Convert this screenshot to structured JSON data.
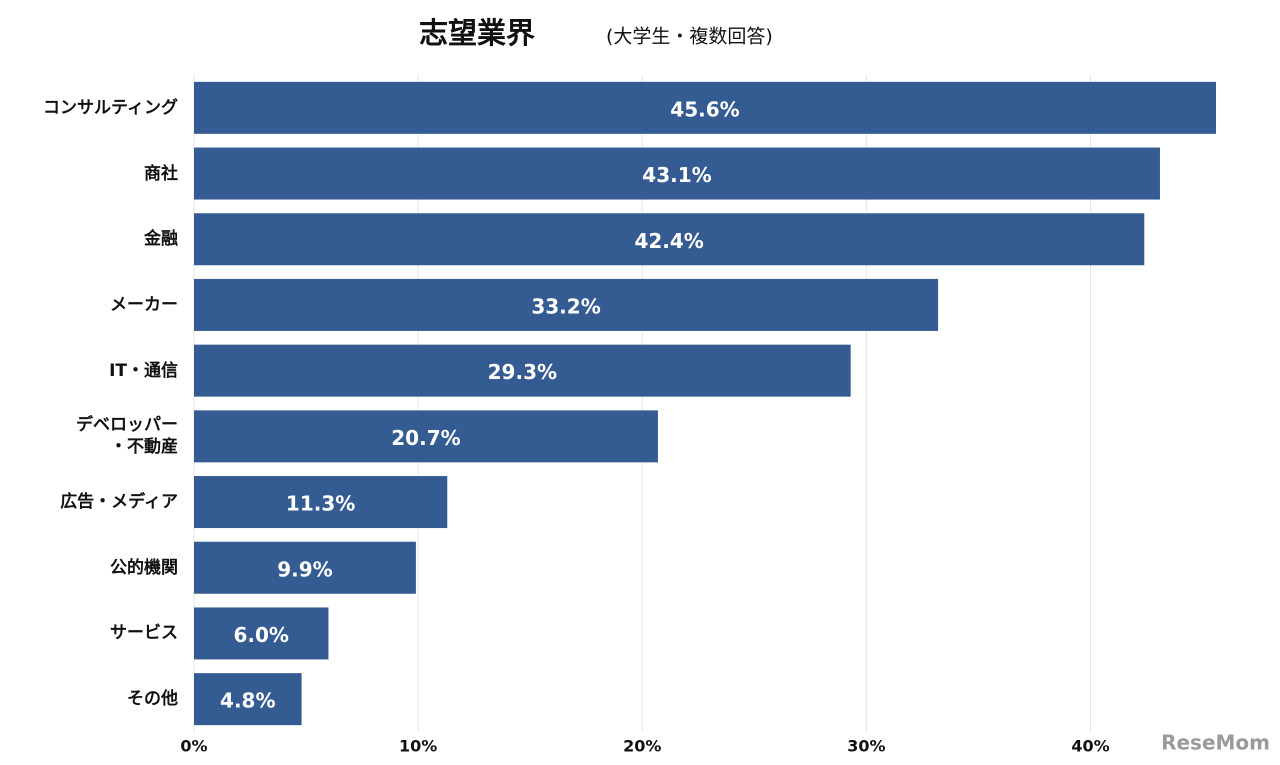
{
  "chart_data": {
    "type": "bar",
    "orientation": "horizontal",
    "title": "志望業界",
    "subtitle": "(大学生・複数回答)",
    "categories": [
      "コンサルティング",
      "商社",
      "金融",
      "メーカー",
      "IT・通信",
      "デベロッパー\n・不動産",
      "広告・メディア",
      "公的機関",
      "サービス",
      "その他"
    ],
    "values": [
      45.6,
      43.1,
      42.4,
      33.2,
      29.3,
      20.7,
      11.3,
      9.9,
      6.0,
      4.8
    ],
    "value_labels": [
      "45.6%",
      "43.1%",
      "42.4%",
      "33.2%",
      "29.3%",
      "20.7%",
      "11.3%",
      "9.9%",
      "6.0%",
      "4.8%"
    ],
    "color": "#355c92",
    "xlim": [
      0,
      45.6
    ],
    "xticks": [
      {
        "value": 0,
        "label": "0%"
      },
      {
        "value": 10,
        "label": "10%"
      },
      {
        "value": 20,
        "label": "20%"
      },
      {
        "value": 30,
        "label": "30%"
      },
      {
        "value": 40,
        "label": "40%"
      }
    ],
    "grid": true,
    "watermark": "ReseMom"
  }
}
